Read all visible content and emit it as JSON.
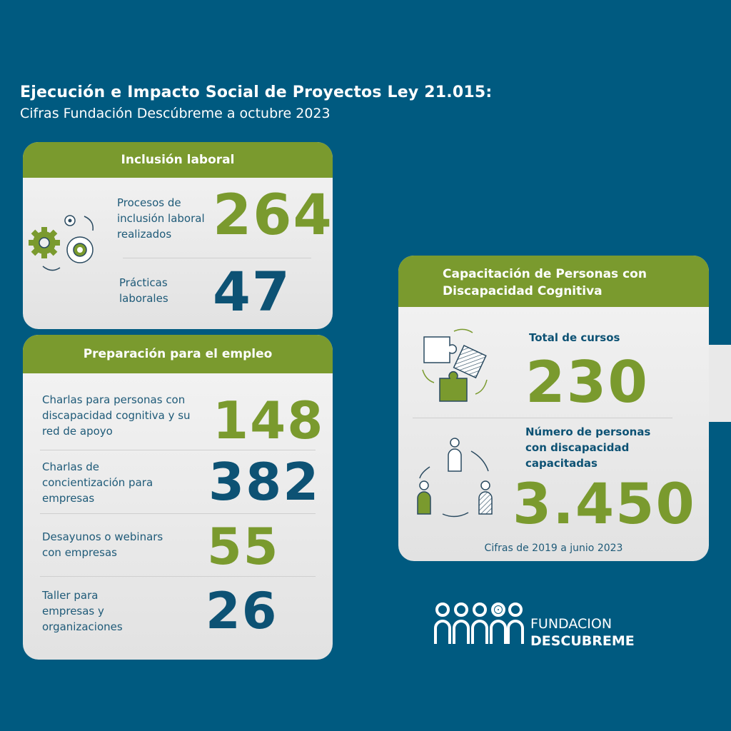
{
  "header": {
    "title": "Ejecución e Impacto Social de Proyectos Ley 21.015:",
    "subtitle": "Cifras Fundación Descúbreme a octubre 2023"
  },
  "colors": {
    "background": "#005a80",
    "green": "#7a9a2e",
    "blue": "#0d5274",
    "card": "#ececec"
  },
  "inclusion": {
    "heading": "Inclusión laboral",
    "icon": "gears-icon",
    "rows": [
      {
        "label": "Procesos de inclusión laboral realizados",
        "value": "264",
        "color": "green"
      },
      {
        "label": "Prácticas laborales",
        "value": "47",
        "color": "blue"
      }
    ]
  },
  "preparacion": {
    "heading": "Preparación para el empleo",
    "rows": [
      {
        "label": "Charlas para personas con discapacidad cognitiva y su red de apoyo",
        "value": "148",
        "color": "green"
      },
      {
        "label": "Charlas de concientización para empresas",
        "value": "382",
        "color": "blue"
      },
      {
        "label": "Desayunos o webinars con empresas",
        "value": "55",
        "color": "green"
      },
      {
        "label": "Taller para empresas y organizaciones",
        "value": "26",
        "color": "blue"
      }
    ]
  },
  "capacitacion": {
    "heading_line1": "Capacitación de Personas con",
    "heading_line2": "Discapacidad Cognitiva",
    "courses_label": "Total de cursos",
    "courses_value": "230",
    "courses_icon": "puzzle-icon",
    "people_label_line1": "Número de personas",
    "people_label_line2": "con discapacidad",
    "people_label_line3": "capacitadas",
    "people_value": "3.450",
    "people_icon": "people-cycle-icon",
    "footnote": "Cifras de 2019 a junio 2023"
  },
  "logo": {
    "line1": "FUNDACION",
    "line2": "DESCUBREME",
    "icon": "people-logo-icon"
  }
}
